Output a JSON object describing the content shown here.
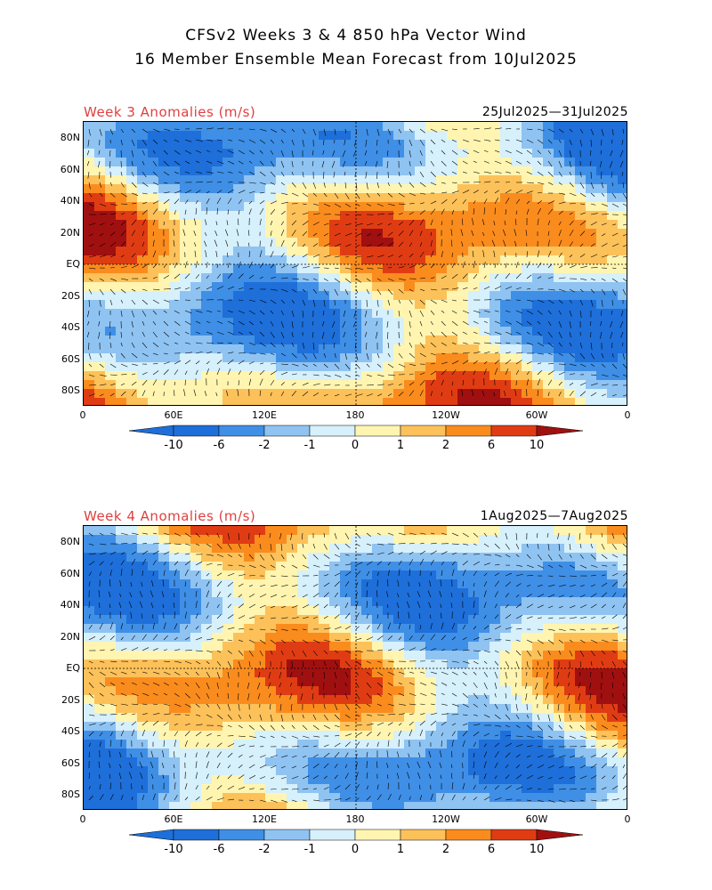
{
  "header": {
    "line1": "CFSv2 Weeks 3 & 4 850 hPa Vector Wind",
    "line2": "16 Member Ensemble Mean Forecast from 10Jul2025"
  },
  "panels": [
    {
      "label": "Week 3 Anomalies (m/s)",
      "dates": "25Jul2025—31Jul2025"
    },
    {
      "label": "Week 4 Anomalies (m/s)",
      "dates": "1Aug2025—7Aug2025"
    }
  ],
  "lat_labels": [
    "80N",
    "60N",
    "40N",
    "20N",
    "EQ",
    "20S",
    "40S",
    "60S",
    "80S"
  ],
  "lon_labels": [
    "0",
    "60E",
    "120E",
    "180",
    "120W",
    "60W",
    "0"
  ],
  "colorbar": {
    "labels": [
      "-10",
      "-6",
      "-2",
      "-1",
      "0",
      "1",
      "2",
      "6",
      "10"
    ],
    "colors": [
      "#1e6fd9",
      "#3f8fe6",
      "#8fc3f2",
      "#d6f0fc",
      "#fff5b0",
      "#fdc15a",
      "#fa8c1e",
      "#e03c14",
      "#a01010"
    ]
  }
}
